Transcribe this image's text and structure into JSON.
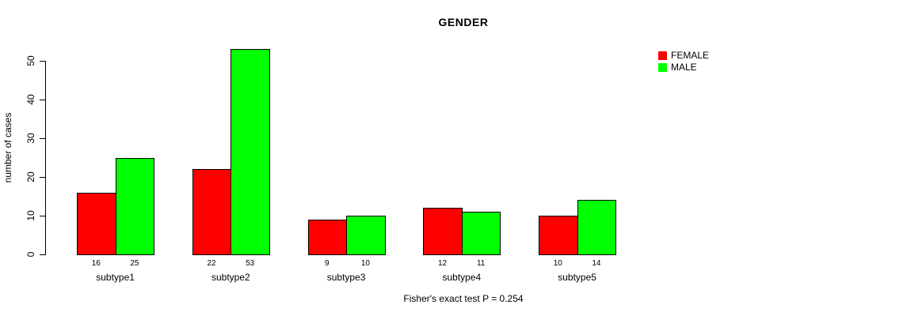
{
  "title": "GENDER",
  "caption": "Fisher's exact test P = 0.254",
  "colors": {
    "female": "#ff0000",
    "male": "#00ff00",
    "axis": "#000000",
    "background": "#ffffff"
  },
  "chart_data": {
    "type": "bar",
    "title": "GENDER",
    "xlabel": "",
    "ylabel": "number of cases",
    "categories": [
      "subtype1",
      "subtype2",
      "subtype3",
      "subtype4",
      "subtype5"
    ],
    "series": [
      {
        "name": "FEMALE",
        "color": "#ff0000",
        "values": [
          16,
          22,
          9,
          12,
          10
        ]
      },
      {
        "name": "MALE",
        "color": "#00ff00",
        "values": [
          25,
          53,
          10,
          11,
          14
        ]
      }
    ],
    "bar_value_labels_shown": true,
    "yticks": [
      0,
      10,
      20,
      30,
      40,
      50
    ],
    "ylim": [
      0,
      55
    ],
    "grid": false,
    "legend": {
      "position": "top-right",
      "entries": [
        {
          "label": "FEMALE",
          "color": "#ff0000"
        },
        {
          "label": "MALE",
          "color": "#00ff00"
        }
      ]
    },
    "annotation": "Fisher's exact test P = 0.254"
  }
}
